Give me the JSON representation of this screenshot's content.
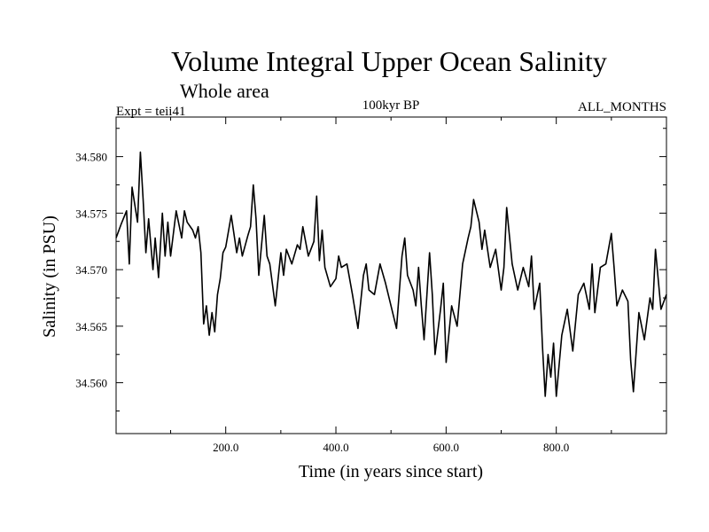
{
  "chart_data": {
    "type": "line",
    "title": "Volume Integral Upper Ocean Salinity",
    "subtitle": "Whole area",
    "experiment": "Expt = teii41",
    "period": "100kyr BP",
    "months": "ALL_MONTHS",
    "xlabel": "Time (in years since start)",
    "ylabel": "Salinity (in PSU)",
    "xlim": [
      1,
      1000
    ],
    "ylim": [
      34.5555,
      34.5835
    ],
    "xticks": [
      200,
      400,
      600,
      800
    ],
    "xtick_labels": [
      "200.0",
      "400.0",
      "600.0",
      "800.0"
    ],
    "yticks": [
      34.56,
      34.565,
      34.57,
      34.575,
      34.58
    ],
    "ytick_labels": [
      "34.560",
      "34.565",
      "34.570",
      "34.575",
      "34.580"
    ],
    "grid": false,
    "legend": "none",
    "line_color": "#000000",
    "series": [
      {
        "x": [
          1,
          10,
          20,
          25,
          30,
          40,
          45,
          50,
          55,
          60,
          68,
          72,
          78,
          85,
          90,
          95,
          100,
          110,
          120,
          125,
          130,
          140,
          145,
          150,
          155,
          160,
          165,
          170,
          175,
          180,
          185,
          190,
          195,
          200,
          210,
          220,
          225,
          230,
          240,
          245,
          250,
          255,
          260,
          270,
          275,
          280,
          290,
          300,
          305,
          310,
          320,
          330,
          335,
          340,
          350,
          360,
          365,
          370,
          375,
          380,
          390,
          400,
          405,
          410,
          420,
          430,
          440,
          450,
          455,
          460,
          470,
          480,
          490,
          500,
          510,
          520,
          525,
          530,
          540,
          545,
          550,
          555,
          560,
          570,
          575,
          580,
          590,
          595,
          600,
          610,
          620,
          630,
          640,
          645,
          650,
          660,
          665,
          670,
          680,
          690,
          700,
          705,
          710,
          720,
          730,
          740,
          750,
          755,
          760,
          770,
          775,
          780,
          785,
          790,
          795,
          800,
          810,
          820,
          830,
          840,
          850,
          860,
          865,
          870,
          880,
          890,
          900,
          905,
          910,
          920,
          930,
          935,
          940,
          950,
          960,
          970,
          975,
          980,
          990,
          1000
        ],
        "values": [
          34.5728,
          34.574,
          34.5752,
          34.5705,
          34.5773,
          34.5742,
          34.5804,
          34.5762,
          34.5715,
          34.5745,
          34.57,
          34.5728,
          34.5693,
          34.575,
          34.5712,
          34.5742,
          34.5712,
          34.5752,
          34.5728,
          34.5752,
          34.5742,
          34.5735,
          34.5728,
          34.5738,
          34.5715,
          34.5652,
          34.5668,
          34.5642,
          34.5662,
          34.5645,
          34.5678,
          34.5692,
          34.5715,
          34.572,
          34.5748,
          34.5715,
          34.5728,
          34.5712,
          34.573,
          34.5738,
          34.5775,
          34.5745,
          34.5695,
          34.5748,
          34.5712,
          34.5705,
          34.5668,
          34.5715,
          34.5695,
          34.5718,
          34.5705,
          34.5722,
          34.5718,
          34.5738,
          34.5712,
          34.5725,
          34.5765,
          34.5708,
          34.5735,
          34.5702,
          34.5685,
          34.5692,
          34.5712,
          34.5702,
          34.5705,
          34.5678,
          34.5648,
          34.5695,
          34.5705,
          34.5682,
          34.5678,
          34.5705,
          34.5688,
          34.5668,
          34.5648,
          34.5712,
          34.5728,
          34.5695,
          34.5682,
          34.5668,
          34.5702,
          34.5668,
          34.5638,
          34.5715,
          34.5678,
          34.5625,
          34.5665,
          34.5688,
          34.5618,
          34.5668,
          34.565,
          34.5705,
          34.5728,
          34.5738,
          34.5762,
          34.5742,
          34.5718,
          34.5735,
          34.5702,
          34.5718,
          34.5682,
          34.5702,
          34.5755,
          34.5705,
          34.5682,
          34.5702,
          34.5685,
          34.5712,
          34.5665,
          34.5688,
          34.5632,
          34.5588,
          34.5625,
          34.5605,
          34.5635,
          34.5588,
          34.5642,
          34.5665,
          34.5628,
          34.5678,
          34.5688,
          34.5665,
          34.5705,
          34.5662,
          34.5702,
          34.5705,
          34.5732,
          34.5702,
          34.5668,
          34.5682,
          34.5672,
          34.562,
          34.5592,
          34.5662,
          34.5638,
          34.5675,
          34.5665,
          34.5718,
          34.5665,
          34.5678
        ]
      }
    ]
  }
}
